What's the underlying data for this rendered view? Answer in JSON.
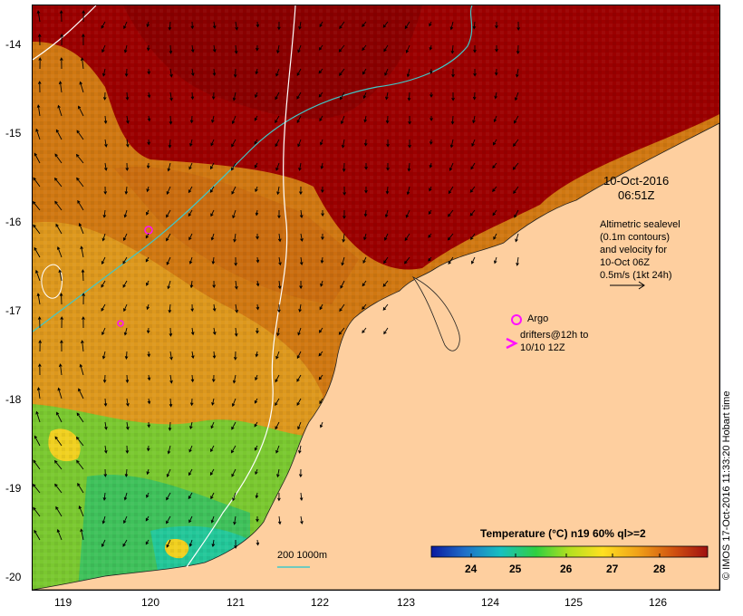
{
  "map": {
    "timestamp_date": "10-Oct-2016",
    "timestamp_time": "06:51Z",
    "legend_text": {
      "line1": "Altimetric sealevel",
      "line2": "(0.1m contours)",
      "line3": "and velocity for",
      "line4": "10-Oct 06Z",
      "line5": "0.5m/s (1kt 24h)"
    },
    "argo_label": "Argo",
    "drifters_label_1": "drifters@12h to",
    "drifters_label_2": "10/10 12Z",
    "depth_label": "200  1000m",
    "colorbar_title": "Temperature (°C) n19 60% ql>=2",
    "colorbar_ticks": [
      "24",
      "25",
      "26",
      "27",
      "28"
    ],
    "credit": "© IMOS 17-Oct-2016 11:33:20 Hobart time",
    "y_ticks": [
      "-14",
      "-15",
      "-16",
      "-17",
      "-18",
      "-19",
      "-20"
    ],
    "x_ticks": [
      "119",
      "120",
      "121",
      "122",
      "123",
      "124",
      "125",
      "126"
    ],
    "colors": {
      "land": "#fecf9f",
      "warm": "#9b0000",
      "sst_mid": "#d27a12",
      "sst_cool": "#4ecb3c",
      "contour_depth": "#40c8c8",
      "contour_shallow": "#ffffff",
      "argo_drifter": "#ff10ff"
    }
  }
}
